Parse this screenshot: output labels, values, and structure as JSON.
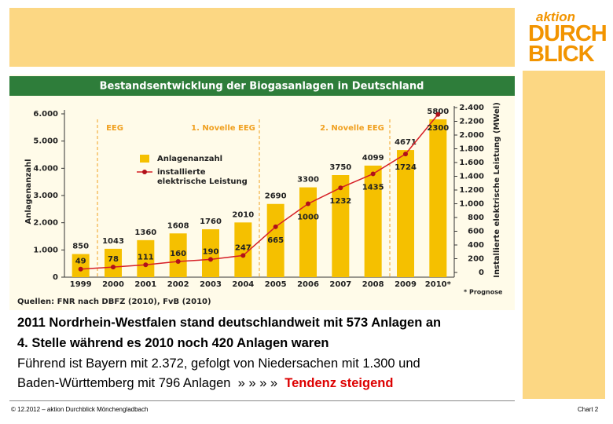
{
  "chart_data": {
    "type": "bar",
    "title": "Bestandsentwicklung der Biogasanlagen in Deutschland",
    "categories": [
      "1999",
      "2000",
      "2001",
      "2002",
      "2003",
      "2004",
      "2005",
      "2006",
      "2007",
      "2008",
      "2009",
      "2010*"
    ],
    "series": [
      {
        "name": "Anlagenanzahl",
        "color": "#f5c000",
        "values": [
          850,
          1043,
          1360,
          1608,
          1760,
          2010,
          2690,
          3300,
          3750,
          4099,
          4671,
          5800
        ]
      },
      {
        "name": "installierte elektrische Leistung",
        "color": "#d61f26",
        "type": "line",
        "axis": "y2",
        "values": [
          49,
          78,
          111,
          160,
          190,
          247,
          665,
          1000,
          1232,
          1435,
          1724,
          2300
        ]
      }
    ],
    "ylabel": "Anlagenanzahl",
    "y2label": "Installierte elektrische Leistung (MWel)",
    "ylim": [
      0,
      6000
    ],
    "yticks": [
      0,
      {
        "value": 1000,
        "label": "1.000"
      },
      {
        "value": 2000,
        "label": "2.000"
      },
      {
        "value": 3000,
        "label": "3.000"
      },
      {
        "value": 4000,
        "label": "4.000"
      },
      {
        "value": 5000,
        "label": "5.000"
      },
      {
        "value": 6000,
        "label": "6.000"
      }
    ],
    "y2lim": [
      0,
      2400
    ],
    "y2ticks": [
      0,
      200,
      400,
      600,
      800,
      {
        "value": 1000,
        "label": "1.000"
      },
      {
        "value": 1200,
        "label": "1.200"
      },
      {
        "value": 1400,
        "label": "1.400"
      },
      {
        "value": 1600,
        "label": "1.600"
      },
      {
        "value": 1800,
        "label": "1.800"
      },
      {
        "value": 2000,
        "label": "2.000"
      },
      {
        "value": 2200,
        "label": "2.200"
      },
      {
        "value": 2400,
        "label": "2.400"
      }
    ],
    "annotations": [
      "EEG",
      "1. Novelle EEG",
      "2. Novelle EEG"
    ],
    "source": "Quellen: FNR nach DBFZ (2010), FvB (2010)",
    "note": "* Prognose",
    "legend": "upper left"
  },
  "slide": {
    "logo": [
      "aktion",
      "DURCH",
      "BLICK"
    ],
    "bold_lines": [
      "2011 Nordrhein-Westfalen stand deutschlandweit mit 573 Anlagen an",
      "4. Stelle während es 2010 noch 420 Anlagen waren"
    ],
    "lines": [
      "Führend ist Bayern mit 2.372, gefolgt von Niedersachen mit 1.300 und",
      "Baden-Württemberg mit 796 Anlagen  » » » »  "
    ],
    "highlight": "Tendenz steigend",
    "footer": "© 12.2012 – aktion Durchblick Mönchengladbach",
    "page": "Chart 2"
  }
}
